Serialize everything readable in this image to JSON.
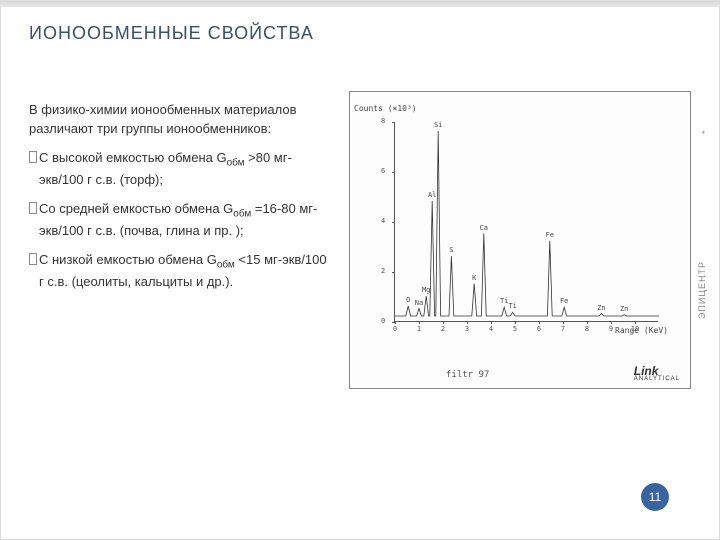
{
  "title": "ИОНООБМЕННЫЕ СВОЙСТВА",
  "title_fontsize": 18,
  "intro": "В физико-химии ионообменных материалов различают три группы ионообменников:",
  "items": [
    {
      "pre": "С высокой емкостью обмена G",
      "sub": "обм",
      "post": " >80 мг-экв/100 г с.в. (торф);"
    },
    {
      "pre": "Со средней емкостью обмена G",
      "sub": "обм",
      "post": " =16-80 мг-экв/100 г с.в. (почва, глина и пр. );"
    },
    {
      "pre": "С низкой емкостью обмена   G",
      "sub": "обм",
      "post": " <15 мг-экв/100 г с.в. (цеолиты, кальциты и др.)."
    }
  ],
  "sidebar": {
    "star": "*",
    "label": "ЭПИЦЕНТР"
  },
  "page_number": "11",
  "chart": {
    "type": "line",
    "y_axis_label": "Counts (×10³)",
    "x_axis_label": "Range (KeV)",
    "filter_label": "filtr 97",
    "logo": "Link",
    "logo_sub": "ANALYTICAL",
    "xlim": [
      0,
      11
    ],
    "ylim": [
      0,
      8
    ],
    "xticks": [
      0,
      1,
      2,
      3,
      4,
      5,
      6,
      7,
      8,
      9,
      10
    ],
    "yticks": [
      0,
      2,
      4,
      6,
      8
    ],
    "line_color": "#333333",
    "background_color": "#fdfdfd",
    "border_color": "#888888",
    "label_fontsize": 8,
    "tick_fontsize": 7,
    "peaks": [
      {
        "label": "O",
        "x": 0.55,
        "height": 0.6
      },
      {
        "label": "Na",
        "x": 1.0,
        "height": 0.5
      },
      {
        "label": "Mg",
        "x": 1.3,
        "height": 1.0
      },
      {
        "label": "Al",
        "x": 1.55,
        "height": 4.8
      },
      {
        "label": "Si",
        "x": 1.8,
        "height": 7.6
      },
      {
        "label": "S",
        "x": 2.35,
        "height": 2.6
      },
      {
        "label": "K",
        "x": 3.3,
        "height": 1.5
      },
      {
        "label": "Ca",
        "x": 3.7,
        "height": 3.5
      },
      {
        "label": "Ti",
        "x": 4.55,
        "height": 0.55
      },
      {
        "label": "Ti",
        "x": 4.9,
        "height": 0.35
      },
      {
        "label": "Fe",
        "x": 6.45,
        "height": 3.2
      },
      {
        "label": "Fe",
        "x": 7.05,
        "height": 0.55
      },
      {
        "label": "Zn",
        "x": 8.6,
        "height": 0.3
      },
      {
        "label": "Zn",
        "x": 9.55,
        "height": 0.25
      }
    ],
    "baseline": 0.2,
    "peak_half_width": 0.1
  },
  "colors": {
    "title": "#3a4f6b",
    "text": "#333333",
    "badge_bg": "#3a63a2",
    "sidebar": "#888888"
  }
}
